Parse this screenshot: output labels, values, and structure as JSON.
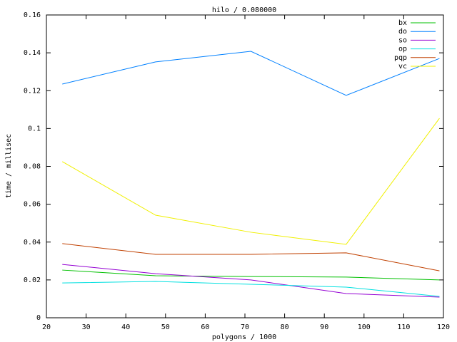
{
  "chart_data": {
    "type": "line",
    "title": "hilo / 0.080000",
    "x_label": "polygons / 1000",
    "y_label": "time / millisec",
    "x": [
      24,
      47.5,
      71.5,
      95.5,
      119
    ],
    "series": [
      {
        "name": "bx",
        "color": "#00c000",
        "values": [
          0.0252,
          0.0222,
          0.0218,
          0.0215,
          0.02
        ]
      },
      {
        "name": "do",
        "color": "#0080ff",
        "values": [
          0.1235,
          0.1352,
          0.1408,
          0.1175,
          0.137
        ]
      },
      {
        "name": "so",
        "color": "#9400d3",
        "values": [
          0.0282,
          0.0233,
          0.02,
          0.0128,
          0.0109
        ]
      },
      {
        "name": "op",
        "color": "#00e0e0",
        "values": [
          0.0184,
          0.0192,
          0.0177,
          0.0162,
          0.0113
        ]
      },
      {
        "name": "pqp",
        "color": "#c04000",
        "values": [
          0.0392,
          0.0335,
          0.0335,
          0.0343,
          0.0248
        ]
      },
      {
        "name": "vc",
        "color": "#f0f000",
        "values": [
          0.0825,
          0.0542,
          0.0452,
          0.0388,
          0.1054
        ]
      }
    ],
    "xlim": [
      20,
      120
    ],
    "xticks": [
      20,
      30,
      40,
      50,
      60,
      70,
      80,
      90,
      100,
      110,
      120
    ],
    "ylim": [
      0,
      0.16
    ],
    "yticks": [
      0,
      0.02,
      0.04,
      0.06,
      0.08,
      0.1,
      0.12,
      0.14,
      0.16
    ],
    "legend": "top-right"
  }
}
